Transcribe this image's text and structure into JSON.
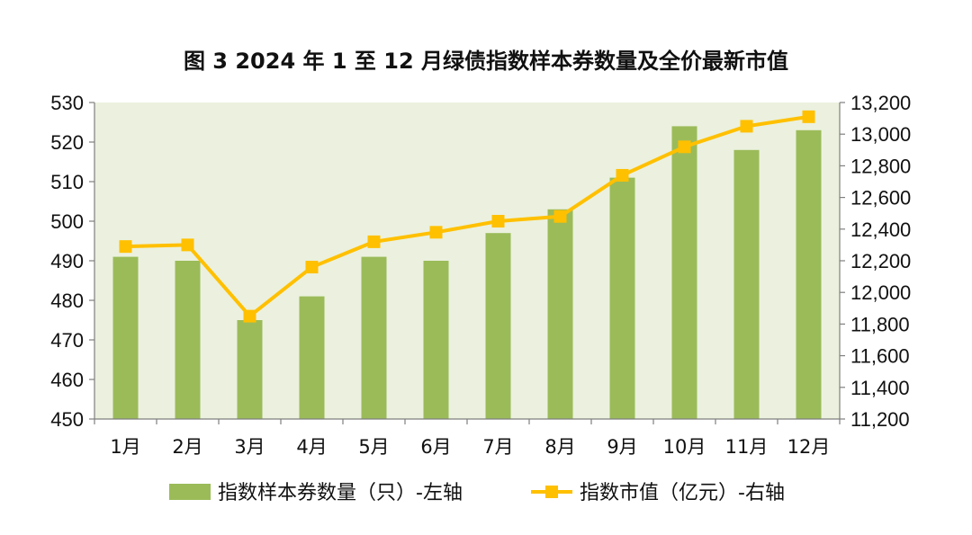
{
  "chart_data": {
    "type": "bar+line",
    "title": "图 3 2024 年 1 至 12 月绿债指数样本券数量及全价最新市值",
    "categories": [
      "1月",
      "2月",
      "3月",
      "4月",
      "5月",
      "6月",
      "7月",
      "8月",
      "9月",
      "10月",
      "11月",
      "12月"
    ],
    "series": [
      {
        "name": "指数样本券数量（只）-左轴",
        "type": "bar",
        "axis": "left",
        "color": "#9bbb59",
        "values": [
          491,
          490,
          475,
          481,
          491,
          490,
          497,
          503,
          511,
          524,
          518,
          523
        ]
      },
      {
        "name": "指数市值（亿元）-右轴",
        "type": "line",
        "axis": "right",
        "color": "#ffc000",
        "values": [
          12290,
          12300,
          11850,
          12160,
          12320,
          12380,
          12450,
          12480,
          12740,
          12920,
          13050,
          13110
        ]
      }
    ],
    "left_axis": {
      "min": 450,
      "max": 530,
      "ticks": [
        "530",
        "520",
        "510",
        "500",
        "490",
        "480",
        "470",
        "460",
        "450"
      ]
    },
    "right_axis": {
      "min": 11200,
      "max": 13200,
      "ticks": [
        "13,200",
        "13,000",
        "12,800",
        "12,600",
        "12,400",
        "12,200",
        "12,000",
        "11,800",
        "11,600",
        "11,400",
        "11,200"
      ]
    },
    "plot_background": "#ebf1de",
    "grid": false,
    "legend_position": "bottom"
  }
}
